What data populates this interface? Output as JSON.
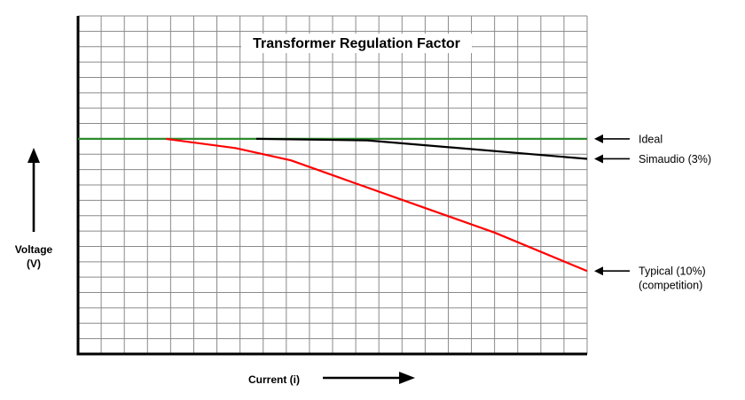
{
  "chart_data": {
    "type": "line",
    "title": "Transformer Regulation Factor",
    "xlabel": "Current (i)",
    "ylabel": "Voltage\n(V)",
    "grid": true,
    "legend": "right",
    "xlim": [
      0,
      22
    ],
    "ylim": [
      0,
      22
    ],
    "series": [
      {
        "name": "Ideal",
        "color": "#2e8b2e",
        "x": [
          0,
          22
        ],
        "y": [
          14,
          14
        ],
        "label_lines": [
          "Ideal"
        ]
      },
      {
        "name": "Simaudio (3%)",
        "color": "#000000",
        "x": [
          7.7,
          12.5,
          22
        ],
        "y": [
          14,
          13.9,
          12.7
        ],
        "label_lines": [
          "Simaudio (3%)"
        ]
      },
      {
        "name": "Typical (10%)\n(competition)",
        "color": "#ff0000",
        "x": [
          3.8,
          6.8,
          9.2,
          12,
          15,
          18,
          22
        ],
        "y": [
          14,
          13.4,
          12.6,
          11.1,
          9.5,
          7.9,
          5.4
        ],
        "label_lines": [
          "Typical (10%)",
          "(competition)"
        ]
      }
    ]
  }
}
